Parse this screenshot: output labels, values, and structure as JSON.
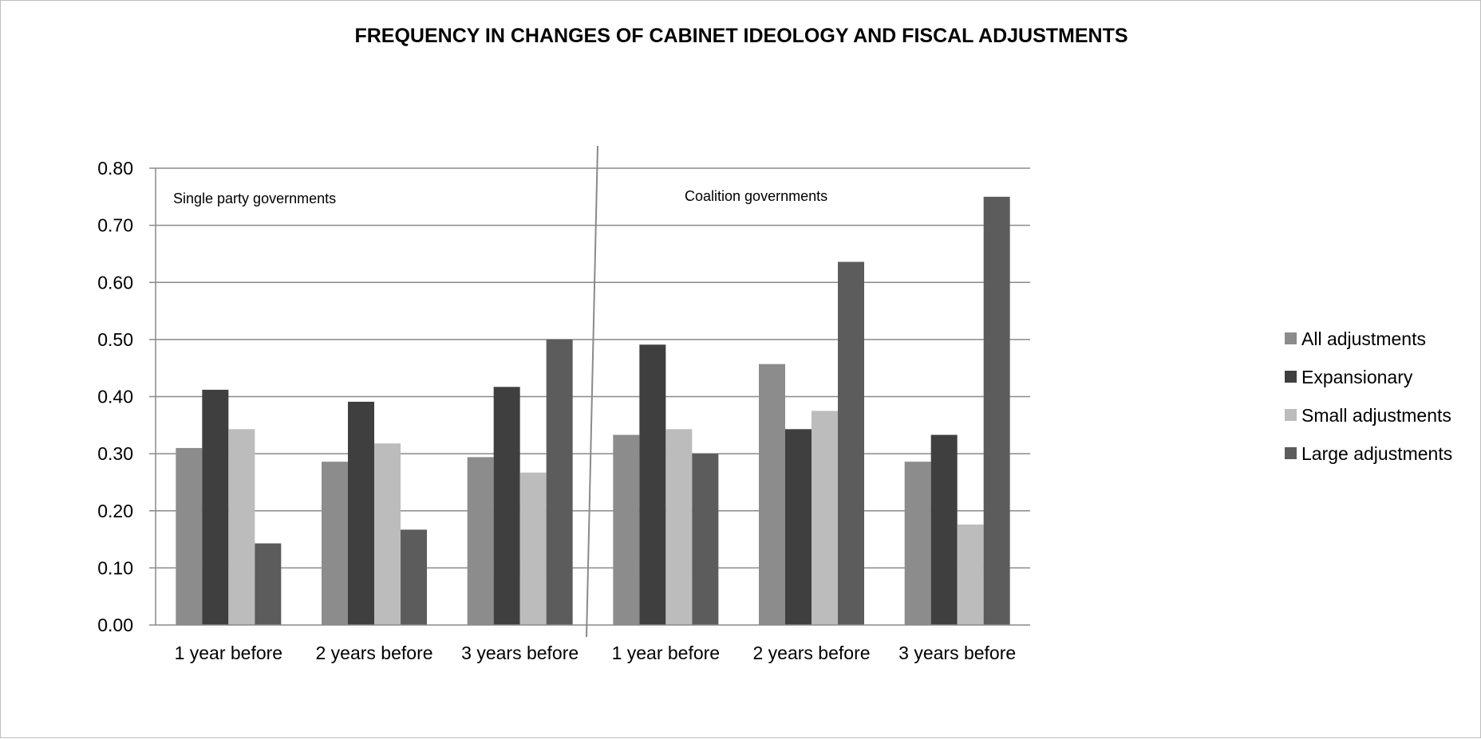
{
  "chart_data": {
    "type": "bar",
    "title": "FREQUENCY IN CHANGES OF CABINET IDEOLOGY AND FISCAL ADJUSTMENTS",
    "xlabel": "",
    "ylabel": "",
    "ylim": [
      0,
      0.8
    ],
    "yticks": [
      "0.00",
      "0.10",
      "0.20",
      "0.30",
      "0.40",
      "0.50",
      "0.60",
      "0.70",
      "0.80"
    ],
    "grid": true,
    "legend_position": "right",
    "categories": [
      "1 year before",
      "2 years before",
      "3 years before",
      "1 year before",
      "2 years before",
      "3 years before"
    ],
    "groups": [
      {
        "label": "Single party governments",
        "start": 0,
        "end": 2
      },
      {
        "label": "Coalition governments",
        "start": 3,
        "end": 5
      }
    ],
    "series": [
      {
        "name": "All adjustments",
        "color": "#8c8c8c",
        "values": [
          0.31,
          0.286,
          0.294,
          0.333,
          0.457,
          0.286
        ]
      },
      {
        "name": "Expansionary",
        "color": "#3f3f3f",
        "values": [
          0.412,
          0.391,
          0.417,
          0.491,
          0.343,
          0.333
        ]
      },
      {
        "name": "Small adjustments",
        "color": "#bcbcbc",
        "values": [
          0.343,
          0.318,
          0.267,
          0.343,
          0.375,
          0.176
        ]
      },
      {
        "name": "Large adjustments",
        "color": "#5c5c5c",
        "values": [
          0.143,
          0.167,
          0.5,
          0.3,
          0.636,
          0.75
        ]
      }
    ]
  }
}
